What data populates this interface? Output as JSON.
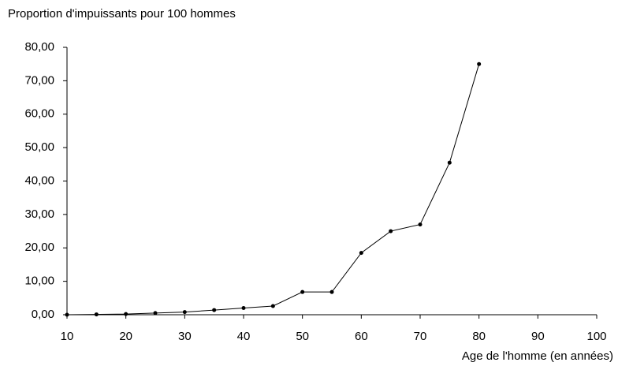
{
  "chart_data": {
    "type": "line",
    "ylabel": "Proportion d'impuissants pour 100 hommes",
    "xlabel": "Age de l'homme (en années)",
    "x": [
      10,
      15,
      20,
      25,
      30,
      35,
      40,
      45,
      50,
      55,
      60,
      65,
      70,
      75,
      80
    ],
    "series": [
      {
        "color": "#000000",
        "values": [
          0,
          0.1,
          0.2,
          0.5,
          0.8,
          1.4,
          2.0,
          2.6,
          6.8,
          6.8,
          18.5,
          25,
          27,
          45.5,
          75
        ]
      }
    ],
    "xlim": [
      10,
      100
    ],
    "xticks": [
      10,
      20,
      30,
      40,
      50,
      60,
      70,
      80,
      90,
      100
    ],
    "ylim": [
      0,
      80
    ],
    "yticks": [
      {
        "value": 0,
        "label": "0,00"
      },
      {
        "value": 10,
        "label": "10,00"
      },
      {
        "value": 20,
        "label": "20,00"
      },
      {
        "value": 30,
        "label": "30,00"
      },
      {
        "value": 40,
        "label": "40,00"
      },
      {
        "value": 50,
        "label": "50,00"
      },
      {
        "value": 60,
        "label": "60,00"
      },
      {
        "value": 70,
        "label": "70,00"
      },
      {
        "value": 80,
        "label": "80,00"
      }
    ],
    "grid": false
  }
}
